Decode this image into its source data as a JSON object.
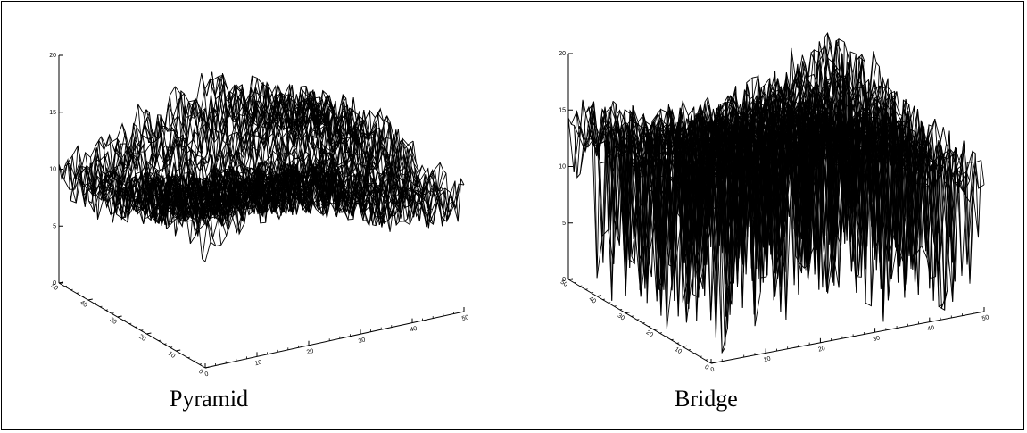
{
  "chart_data": [
    {
      "type": "surface",
      "caption": "Pyramid",
      "zlim": [
        0,
        20
      ],
      "z_ticks": [
        "0",
        "5",
        "10",
        "15",
        "20"
      ],
      "x_ticks": [
        "0",
        "10",
        "20",
        "30",
        "40",
        "50"
      ],
      "y_ticks": [
        "0",
        "10",
        "20",
        "30",
        "40",
        "50"
      ],
      "xlim": [
        0,
        50
      ],
      "ylim": [
        0,
        50
      ],
      "grid_size": [
        50,
        50
      ],
      "z_summary": {
        "min": 4,
        "typical_min": 8,
        "typical_max": 15,
        "max": 18
      }
    },
    {
      "type": "surface",
      "caption": "Bridge",
      "zlim": [
        0,
        20
      ],
      "z_ticks": [
        "0",
        "5",
        "10",
        "15",
        "20"
      ],
      "x_ticks": [
        "0",
        "10",
        "20",
        "30",
        "40",
        "50"
      ],
      "y_ticks": [
        "0",
        "10",
        "20",
        "30",
        "40",
        "50"
      ],
      "xlim": [
        0,
        50
      ],
      "ylim": [
        0,
        50
      ],
      "grid_size": [
        50,
        50
      ],
      "z_summary": {
        "min": 0,
        "typical_min": 9,
        "typical_max": 17,
        "max": 21
      }
    }
  ]
}
